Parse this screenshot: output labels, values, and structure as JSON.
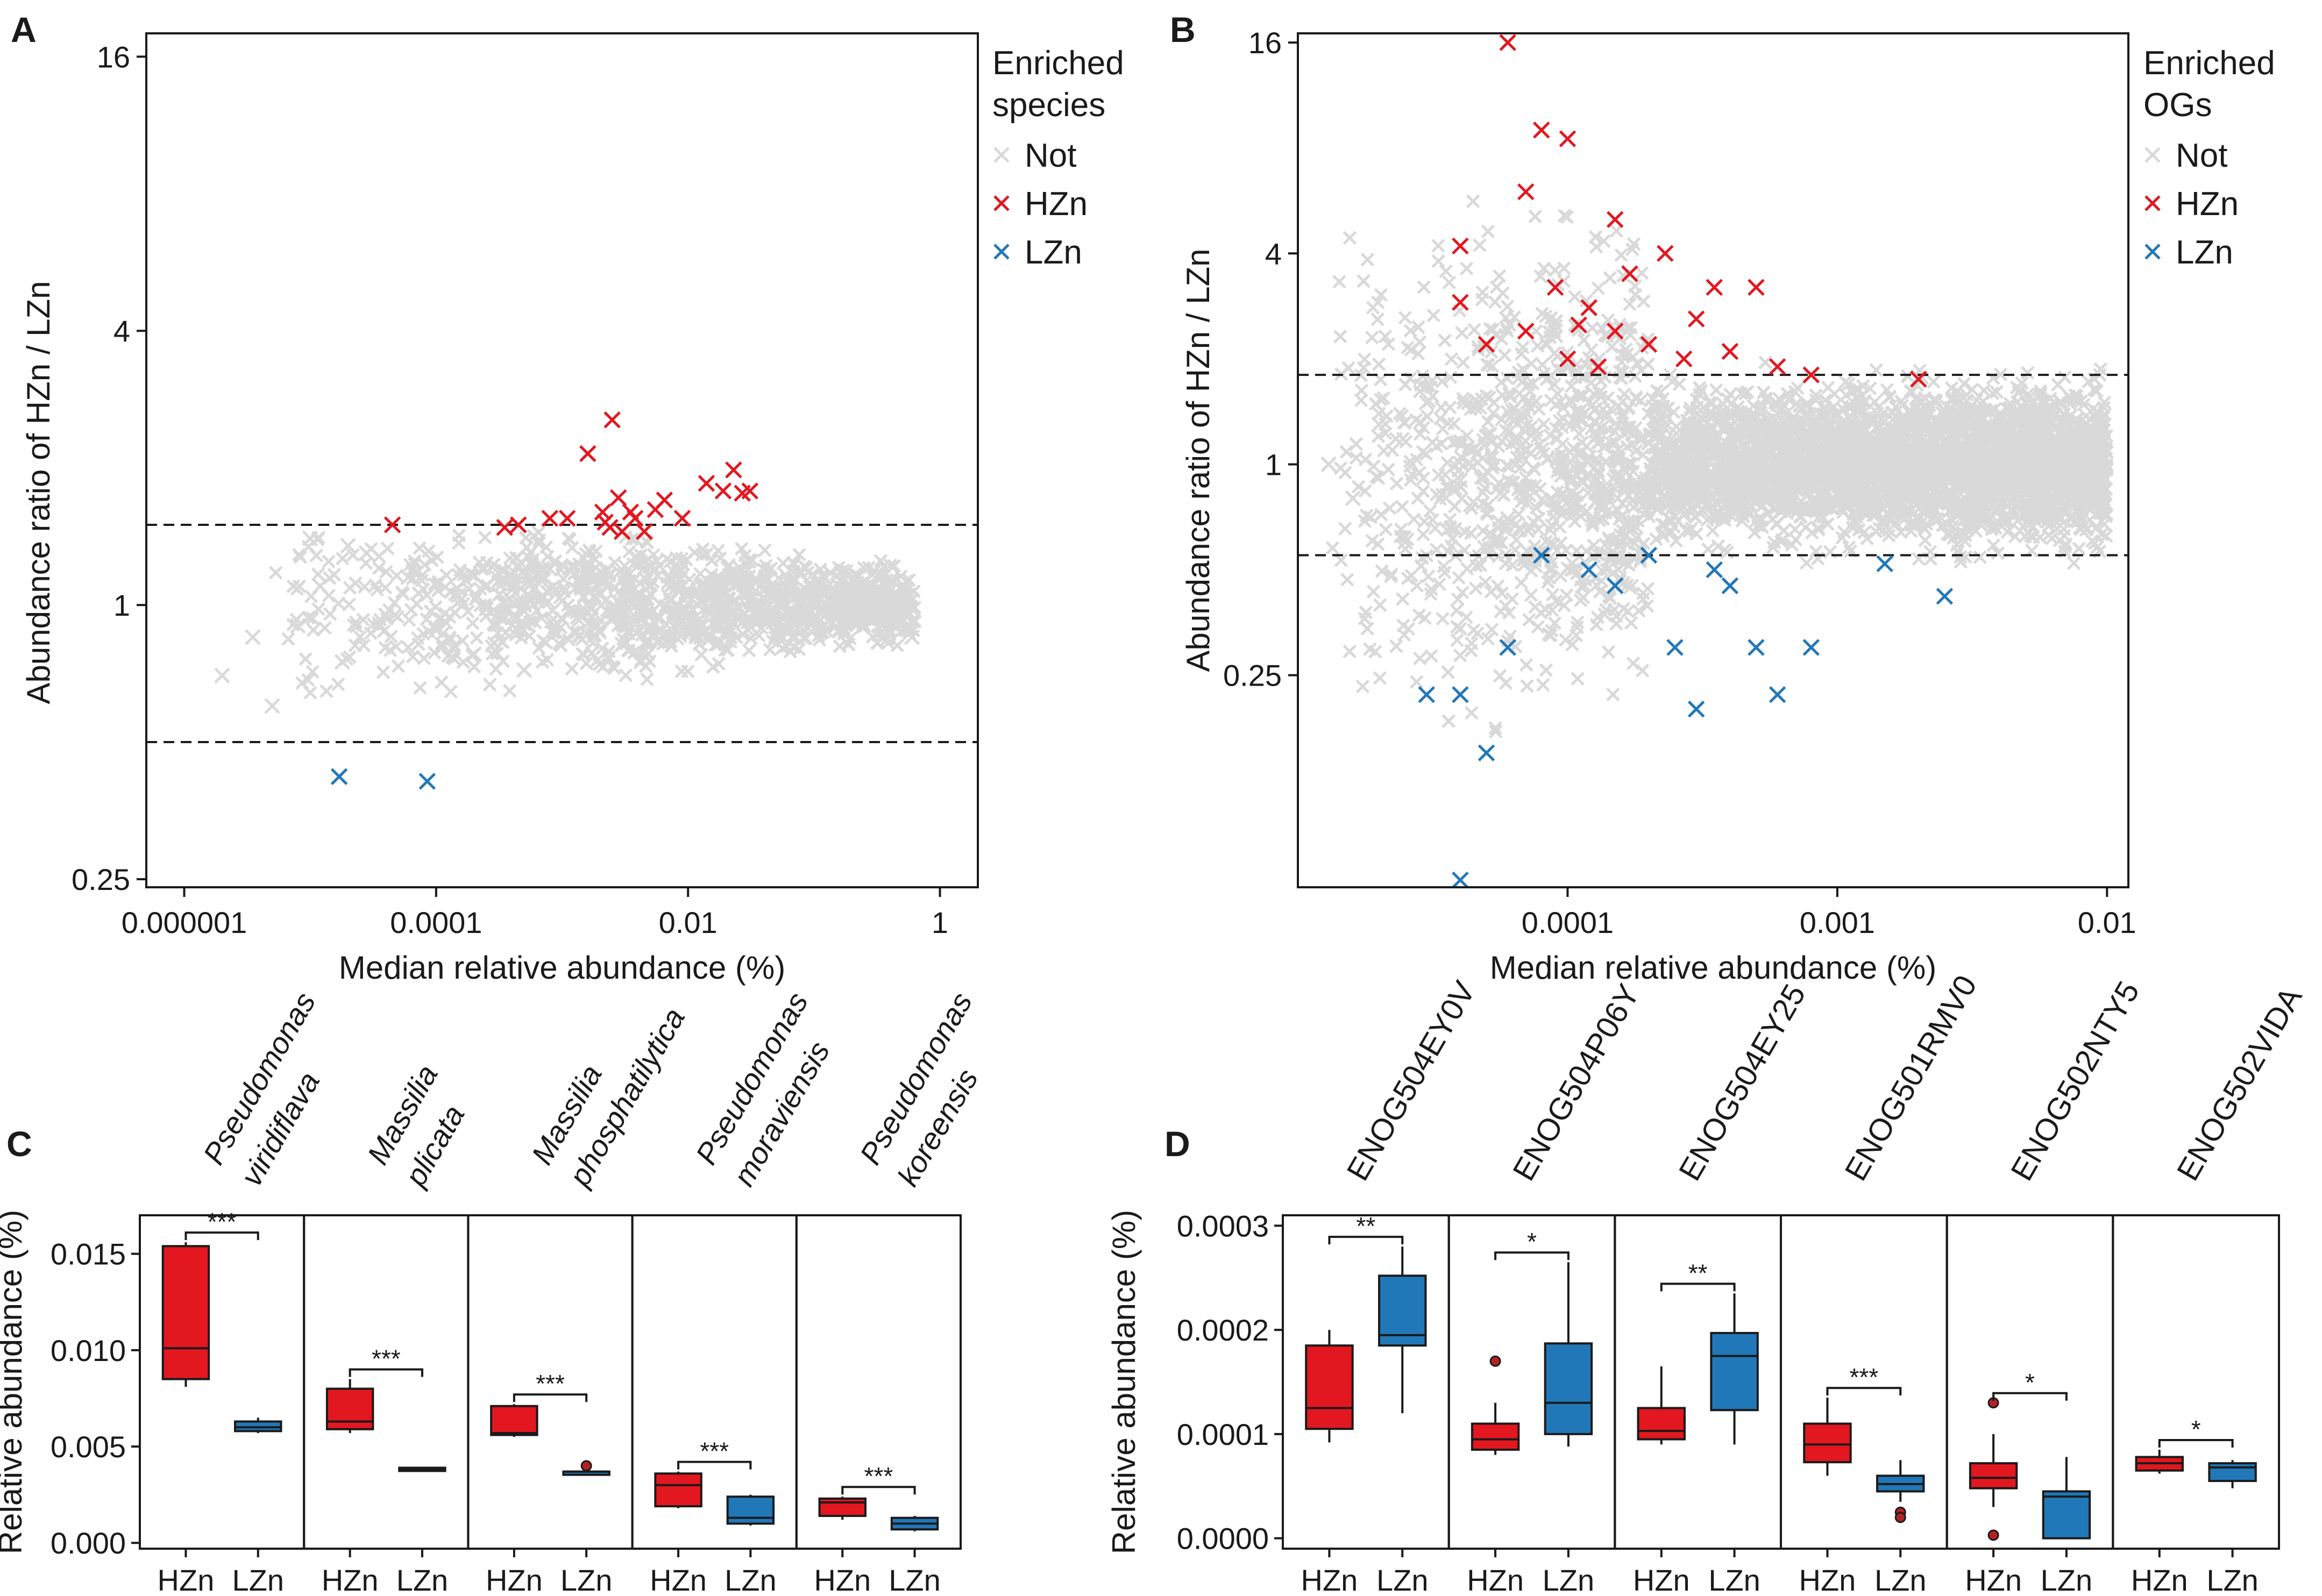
{
  "colors": {
    "not": "#d9d9d9",
    "hzn": "#e3171f",
    "lzn": "#2178b8",
    "line": "#1a1a1a"
  },
  "chart_data": [
    {
      "panel": "A",
      "type": "scatter",
      "xscale": "log10",
      "yscale": "log2",
      "xlabel": "Median relative abundance (%)",
      "ylabel": "Abundance ratio of HZn / LZn",
      "xlim": [
        5e-07,
        2
      ],
      "ylim": [
        0.24,
        18
      ],
      "xticks": [
        1e-06,
        0.0001,
        0.01,
        1
      ],
      "xticklabels": [
        "0.000001",
        "0.0001",
        "0.01",
        "1"
      ],
      "yticks": [
        0.25,
        1,
        4,
        16
      ],
      "yticklabels": [
        "0.25",
        "1",
        "4",
        "16"
      ],
      "thresholds": [
        1.5,
        0.5
      ],
      "legend": {
        "title": "Enriched species",
        "entries": [
          "Not",
          "HZn",
          "LZn"
        ],
        "position": "right"
      },
      "series": [
        {
          "name": "HZn",
          "x": [
            4.5e-05,
            0.00035,
            0.00045,
            0.0008,
            0.0011,
            0.0016,
            0.0021,
            0.0022,
            0.0024,
            0.0025,
            0.0028,
            0.003,
            0.0035,
            0.0038,
            0.0045,
            0.0055,
            0.0065,
            0.009,
            0.014,
            0.019,
            0.023,
            0.027,
            0.031
          ],
          "y": [
            1.5,
            1.48,
            1.5,
            1.55,
            1.55,
            2.15,
            1.6,
            1.52,
            1.48,
            2.55,
            1.72,
            1.45,
            1.6,
            1.55,
            1.45,
            1.62,
            1.7,
            1.55,
            1.85,
            1.78,
            1.98,
            1.76,
            1.78
          ]
        },
        {
          "name": "LZn",
          "x": [
            1.7e-05,
            8.5e-05
          ],
          "y": [
            0.42,
            0.41
          ]
        },
        {
          "name": "Not",
          "x": [
            2e-06,
            3.5e-06,
            5e-06,
            8e-06,
            1.2e-05,
            1.8e-05,
            2.8e-05,
            4e-05,
            6e-05,
            0.0001,
            0.00015,
            0.00025,
            0.0004,
            0.0006,
            0.001,
            0.0015,
            0.0025,
            0.004,
            0.006,
            0.01,
            0.015,
            0.025,
            0.04,
            0.06,
            0.1,
            0.15,
            0.3,
            0.6,
            0.0008,
            0.003,
            0.03,
            2e-05,
            0.0002,
            0.002,
            0.02,
            0.2,
            1e-05,
            0.0005,
            0.005,
            0.05
          ],
          "y": [
            0.7,
            0.85,
            0.6,
            0.9,
            1.1,
            0.75,
            1.3,
            0.95,
            1.15,
            0.88,
            1.05,
            0.98,
            1.08,
            0.92,
            1.02,
            1.12,
            0.97,
            1.06,
            0.94,
            1.01,
            1.09,
            0.93,
            1.04,
            0.96,
            1.0,
            0.9,
            0.95,
            0.85,
            1.2,
            0.82,
            1.25,
            1.35,
            0.78,
            1.18,
            0.8,
            1.1,
            1.4,
            0.72,
            1.22,
            0.87
          ]
        }
      ]
    },
    {
      "panel": "B",
      "type": "scatter",
      "xscale": "log10",
      "yscale": "log2",
      "xlabel": "Median relative abundance (%)",
      "ylabel": "Abundance ratio of HZn / LZn",
      "xlim": [
        1e-05,
        0.012
      ],
      "ylim": [
        0.062,
        17
      ],
      "xticks": [
        0.0001,
        0.001,
        0.01
      ],
      "xticklabels": [
        "0.0001",
        "0.001",
        "0.01"
      ],
      "yticks": [
        0.25,
        1,
        4,
        16
      ],
      "yticklabels": [
        "0.25",
        "1",
        "4",
        "16"
      ],
      "thresholds": [
        1.8,
        0.55
      ],
      "legend": {
        "title": "Enriched OGs",
        "entries": [
          "Not",
          "HZn",
          "LZn"
        ],
        "position": "right"
      },
      "series": [
        {
          "name": "HZn",
          "x": [
            4e-05,
            5e-05,
            6e-05,
            7e-05,
            8e-05,
            9e-05,
            0.0001,
            0.00011,
            0.00012,
            0.00013,
            0.00015,
            0.00017,
            0.0002,
            0.00023,
            0.00027,
            0.0003,
            0.00035,
            0.0004,
            0.0005,
            0.0006,
            0.0008,
            0.002,
            4e-05,
            7e-05,
            0.0001,
            0.00015
          ],
          "y": [
            4.2,
            2.2,
            16,
            6,
            9,
            3.2,
            2.0,
            2.5,
            2.8,
            1.9,
            2.4,
            3.5,
            2.2,
            4.0,
            2.0,
            2.6,
            3.2,
            2.1,
            3.2,
            1.9,
            1.8,
            1.75,
            2.9,
            2.4,
            8.5,
            5.0
          ]
        },
        {
          "name": "LZn",
          "x": [
            3e-05,
            4e-05,
            5e-05,
            6e-05,
            8e-05,
            0.00012,
            0.00015,
            0.0002,
            0.00025,
            0.0003,
            0.00035,
            0.0004,
            0.0005,
            0.0006,
            0.0008,
            0.0015,
            0.0025,
            4e-05
          ],
          "y": [
            0.22,
            0.22,
            0.15,
            0.3,
            0.55,
            0.5,
            0.45,
            0.55,
            0.3,
            0.2,
            0.5,
            0.45,
            0.3,
            0.22,
            0.3,
            0.52,
            0.42,
            0.065
          ]
        },
        {
          "name": "Not",
          "x": [
            1.3e-05,
            1.6e-05,
            2e-05,
            2.5e-05,
            3e-05,
            4e-05,
            5e-05,
            6e-05,
            8e-05,
            0.0001,
            0.00012,
            0.00015,
            0.0002,
            0.00025,
            0.0003,
            0.0004,
            0.0005,
            0.0007,
            0.001,
            0.0013,
            0.0017,
            0.0022,
            0.003,
            0.004,
            0.006,
            0.008
          ],
          "y": [
            1.0,
            0.8,
            1.3,
            0.6,
            1.5,
            0.9,
            1.2,
            0.7,
            1.1,
            0.95,
            1.05,
            0.85,
            1.15,
            0.9,
            1.0,
            1.08,
            0.92,
            1.02,
            0.98,
            1.1,
            0.95,
            1.05,
            1.0,
            0.97,
            1.03,
            1.0
          ]
        }
      ]
    },
    {
      "panel": "C",
      "type": "box",
      "ylabel": "Relative abundance (%)",
      "yticks": [
        0.0,
        0.005,
        0.01,
        0.015
      ],
      "yticklabels": [
        "0.000",
        "0.005",
        "0.010",
        "0.015"
      ],
      "ylim": [
        -0.0003,
        0.017
      ],
      "group_labels": [
        "HZn",
        "LZn"
      ],
      "facets": [
        {
          "name_lines": [
            "Pseudomonas",
            "viridiflava"
          ],
          "sig": "***",
          "boxes": [
            {
              "group": "HZn",
              "min": 0.0081,
              "q1": 0.0085,
              "median": 0.0101,
              "q3": 0.0154,
              "max": 0.0156,
              "outliers": []
            },
            {
              "group": "LZn",
              "min": 0.0057,
              "q1": 0.0058,
              "median": 0.006,
              "q3": 0.0063,
              "max": 0.0065,
              "outliers": []
            }
          ]
        },
        {
          "name_lines": [
            "Massilia",
            "plicata"
          ],
          "sig": "***",
          "boxes": [
            {
              "group": "HZn",
              "min": 0.0057,
              "q1": 0.0059,
              "median": 0.0063,
              "q3": 0.008,
              "max": 0.0085,
              "outliers": []
            },
            {
              "group": "LZn",
              "min": 0.0037,
              "q1": 0.0038,
              "median": 0.0038,
              "q3": 0.0039,
              "max": 0.0039,
              "outliers": []
            }
          ]
        },
        {
          "name_lines": [
            "Massilia",
            "phosphatilytica"
          ],
          "sig": "***",
          "boxes": [
            {
              "group": "HZn",
              "min": 0.0055,
              "q1": 0.0056,
              "median": 0.0057,
              "q3": 0.0071,
              "max": 0.0072,
              "outliers": []
            },
            {
              "group": "LZn",
              "min": 0.0035,
              "q1": 0.0036,
              "median": 0.0037,
              "q3": 0.0037,
              "max": 0.0038,
              "outliers": [
                0.004
              ]
            }
          ]
        },
        {
          "name_lines": [
            "Pseudomonas",
            "moraviensis"
          ],
          "sig": "***",
          "boxes": [
            {
              "group": "HZn",
              "min": 0.0018,
              "q1": 0.0019,
              "median": 0.003,
              "q3": 0.0036,
              "max": 0.0037,
              "outliers": []
            },
            {
              "group": "LZn",
              "min": 0.0009,
              "q1": 0.001,
              "median": 0.0013,
              "q3": 0.0024,
              "max": 0.0025,
              "outliers": []
            }
          ]
        },
        {
          "name_lines": [
            "Pseudomonas",
            "koreensis"
          ],
          "sig": "***",
          "boxes": [
            {
              "group": "HZn",
              "min": 0.0012,
              "q1": 0.0014,
              "median": 0.0021,
              "q3": 0.0023,
              "max": 0.0024,
              "outliers": []
            },
            {
              "group": "LZn",
              "min": 0.0006,
              "q1": 0.0007,
              "median": 0.001,
              "q3": 0.0013,
              "max": 0.0014,
              "outliers": []
            }
          ]
        }
      ]
    },
    {
      "panel": "D",
      "type": "box",
      "ylabel": "Relative abundance (%)",
      "yticks": [
        0.0,
        0.0001,
        0.0002,
        0.0003
      ],
      "yticklabels": [
        "0.0000",
        "0.0001",
        "0.0002",
        "0.0003"
      ],
      "ylim": [
        -1e-05,
        0.00031
      ],
      "group_labels": [
        "HZn",
        "LZn"
      ],
      "facets": [
        {
          "name": "ENOG504EY0V",
          "sig": "**",
          "boxes": [
            {
              "group": "HZn",
              "min": 9.2e-05,
              "q1": 0.000105,
              "median": 0.000125,
              "q3": 0.000185,
              "max": 0.0002,
              "outliers": []
            },
            {
              "group": "LZn",
              "min": 0.00012,
              "q1": 0.000185,
              "median": 0.000195,
              "q3": 0.000252,
              "max": 0.00028,
              "outliers": []
            }
          ]
        },
        {
          "name": "ENOG504P06Y",
          "sig": "*",
          "boxes": [
            {
              "group": "HZn",
              "min": 8e-05,
              "q1": 8.5e-05,
              "median": 9.5e-05,
              "q3": 0.00011,
              "max": 0.00013,
              "outliers": [
                0.00017
              ]
            },
            {
              "group": "LZn",
              "min": 8.8e-05,
              "q1": 0.0001,
              "median": 0.00013,
              "q3": 0.000187,
              "max": 0.000265,
              "outliers": []
            }
          ]
        },
        {
          "name": "ENOG504EY25",
          "sig": "**",
          "boxes": [
            {
              "group": "HZn",
              "min": 9e-05,
              "q1": 9.5e-05,
              "median": 0.000103,
              "q3": 0.000125,
              "max": 0.000165,
              "outliers": []
            },
            {
              "group": "LZn",
              "min": 9e-05,
              "q1": 0.000123,
              "median": 0.000175,
              "q3": 0.000197,
              "max": 0.000235,
              "outliers": []
            }
          ]
        },
        {
          "name": "ENOG501RMV0",
          "sig": "***",
          "boxes": [
            {
              "group": "HZn",
              "min": 6e-05,
              "q1": 7.3e-05,
              "median": 9e-05,
              "q3": 0.00011,
              "max": 0.000135,
              "outliers": []
            },
            {
              "group": "LZn",
              "min": 3.5e-05,
              "q1": 4.5e-05,
              "median": 5.2e-05,
              "q3": 6e-05,
              "max": 7.5e-05,
              "outliers": [
                2.5e-05,
                2e-05
              ]
            }
          ]
        },
        {
          "name": "ENOG502NTY5",
          "sig": "*",
          "boxes": [
            {
              "group": "HZn",
              "min": 3e-05,
              "q1": 4.8e-05,
              "median": 5.8e-05,
              "q3": 7.2e-05,
              "max": 0.0001,
              "outliers": [
                3e-06,
                0.00013
              ]
            },
            {
              "group": "LZn",
              "min": 0.0,
              "q1": 0.0,
              "median": 4e-05,
              "q3": 4.5e-05,
              "max": 7.8e-05,
              "outliers": []
            }
          ]
        },
        {
          "name": "ENOG502VIDA",
          "sig": "*",
          "boxes": [
            {
              "group": "HZn",
              "min": 6.2e-05,
              "q1": 6.5e-05,
              "median": 7.2e-05,
              "q3": 7.8e-05,
              "max": 8.5e-05,
              "outliers": []
            },
            {
              "group": "LZn",
              "min": 4.8e-05,
              "q1": 5.5e-05,
              "median": 6.8e-05,
              "q3": 7.2e-05,
              "max": 7.5e-05,
              "outliers": []
            }
          ]
        }
      ]
    }
  ]
}
